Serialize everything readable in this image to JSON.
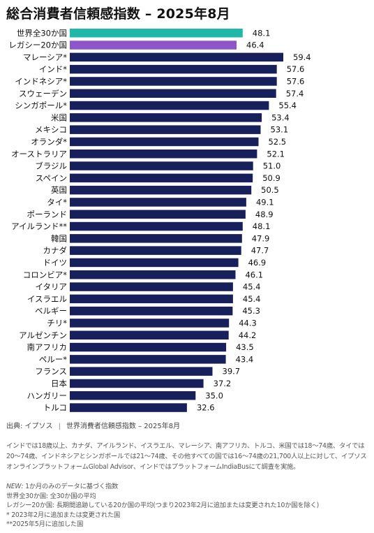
{
  "title": "総合消費者信頼感指数 – 2025年8月",
  "colors": {
    "highlight1": "#1fb8a8",
    "highlight2": "#8d55c8",
    "bar": "#17205a"
  },
  "chart_data": {
    "type": "bar",
    "orientation": "horizontal",
    "categories": [
      "世界全30か国",
      "レガシー20か国",
      "マレーシア*",
      "インド*",
      "インドネシア*",
      "スウェーデン",
      "シンガポール*",
      "米国",
      "メキシコ",
      "オランダ*",
      "オーストラリア",
      "ブラジル",
      "スペイン",
      "英国",
      "タイ*",
      "ポーランド",
      "アイルランド**",
      "韓国",
      "カナダ",
      "ドイツ",
      "コロンビア*",
      "イタリア",
      "イスラエル",
      "ベルギー",
      "チリ*",
      "アルゼンチン",
      "南アフリカ",
      "ペルー*",
      "フランス",
      "日本",
      "ハンガリー",
      "トルコ"
    ],
    "values": [
      48.1,
      46.4,
      59.4,
      57.6,
      57.6,
      57.4,
      55.4,
      53.4,
      53.1,
      52.5,
      52.1,
      51.0,
      50.9,
      50.5,
      49.1,
      48.9,
      48.1,
      47.9,
      47.7,
      46.9,
      46.1,
      45.4,
      45.4,
      45.3,
      44.3,
      44.2,
      43.5,
      43.4,
      39.7,
      37.2,
      35.0,
      32.6
    ],
    "value_labels": [
      "48.1",
      "46.4",
      "59.4",
      "57.6",
      "57.6",
      "57.4",
      "55.4",
      "53.4",
      "53.1",
      "52.5",
      "52.1",
      "51.0",
      "50.9",
      "50.5",
      "49.1",
      "48.9",
      "48.1",
      "47.9",
      "47.7",
      "46.9",
      "46.1",
      "45.4",
      "45.4",
      "45.3",
      "44.3",
      "44.2",
      "43.5",
      "43.4",
      "39.7",
      "37.2",
      "35.0",
      "32.6"
    ],
    "xlim": [
      0,
      59.4
    ],
    "highlight": {
      "世界全30か国": "#1fb8a8",
      "レガシー20か国": "#8d55c8"
    },
    "grid": false,
    "legend": "none"
  },
  "source": {
    "label": "出典: イプソス",
    "separator": "|",
    "text": "世界消費者信頼感指数 – 2025年8月"
  },
  "methodology": "インドでは18歳以上、カナダ、アイルランド、イスラエル、マレーシア、南アフリカ、トルコ、米国では18～74歳、タイでは20～74歳、インドネシアとシンガポールでは21～74歳、その他すべての国では16～74歳の21,700人以上に対して、イプソスオンラインプラットフォームGlobal Advisor、インドではプラットフォームIndiaBusにて調査を実施。",
  "notes": {
    "new_label": "NEW:",
    "new_text": "1か月のみのデータに基づく指数",
    "line2": "世界全30か国: 全30か国の平均",
    "line3": "レガシー20か国: 長期間追跡している20か国の平均(つまり2023年2月に追加または変更された10か国を除く)",
    "line4": "* 2023年2月に追加または変更された国",
    "line5": "**2025年5月に追加した国"
  }
}
